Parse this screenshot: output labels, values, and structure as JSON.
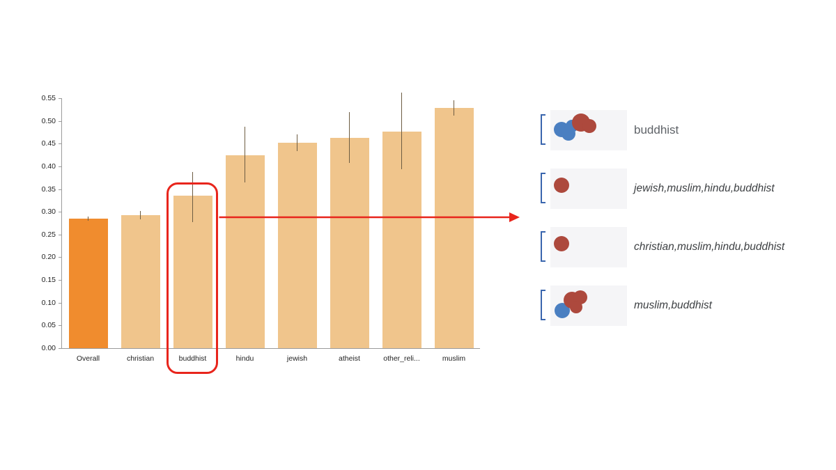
{
  "chart_data": {
    "type": "bar",
    "title": "",
    "xlabel": "",
    "ylabel": "",
    "categories": [
      "Overall",
      "christian",
      "buddhist",
      "hindu",
      "jewish",
      "atheist",
      "other_reli...",
      "muslim"
    ],
    "values": [
      0.285,
      0.293,
      0.335,
      0.425,
      0.452,
      0.463,
      0.477,
      0.528
    ],
    "error_low": [
      0.281,
      0.284,
      0.278,
      0.365,
      0.434,
      0.408,
      0.393,
      0.512
    ],
    "error_high": [
      0.289,
      0.302,
      0.388,
      0.487,
      0.47,
      0.52,
      0.562,
      0.545
    ],
    "ylim": [
      0,
      0.55
    ],
    "yticks": [
      0,
      0.05,
      0.1,
      0.15,
      0.2,
      0.25,
      0.3,
      0.35,
      0.4,
      0.45,
      0.5,
      0.55
    ],
    "grid": false,
    "legend": null,
    "colors": {
      "overall_bar": "#f08c2e",
      "default_bar": "#f0c58c",
      "error_bar": "#6d5c42",
      "highlight_outline": "#e8251c"
    },
    "highlighted_category": "buddhist"
  },
  "annotation": {
    "selected_category": "buddhist",
    "arrow_color": "#e8251c",
    "bracket_color": "#3a66ae",
    "dot_colors": {
      "blue": "#4a7fc1",
      "red": "#ad493d"
    },
    "rows": [
      {
        "label": "buddhist",
        "italic": false,
        "dots": [
          {
            "x": 16,
            "y": 28,
            "r": 11,
            "c": "blue"
          },
          {
            "x": 26,
            "y": 34,
            "r": 10,
            "c": "blue"
          },
          {
            "x": 31,
            "y": 23,
            "r": 9,
            "c": "blue"
          },
          {
            "x": 44,
            "y": 18,
            "r": 13,
            "c": "red"
          },
          {
            "x": 56,
            "y": 23,
            "r": 10,
            "c": "red"
          }
        ]
      },
      {
        "label": "jewish,muslim,hindu,buddhist",
        "italic": true,
        "dots": [
          {
            "x": 16,
            "y": 24,
            "r": 11,
            "c": "red"
          }
        ]
      },
      {
        "label": "christian,muslim,hindu,buddhist",
        "italic": true,
        "dots": [
          {
            "x": 16,
            "y": 24,
            "r": 11,
            "c": "red"
          }
        ]
      },
      {
        "label": "muslim,buddhist",
        "italic": true,
        "dots": [
          {
            "x": 17,
            "y": 36,
            "r": 11,
            "c": "blue"
          },
          {
            "x": 31,
            "y": 21,
            "r": 12,
            "c": "red"
          },
          {
            "x": 43,
            "y": 17,
            "r": 10,
            "c": "red"
          },
          {
            "x": 37,
            "y": 31,
            "r": 9,
            "c": "red"
          }
        ]
      }
    ]
  }
}
